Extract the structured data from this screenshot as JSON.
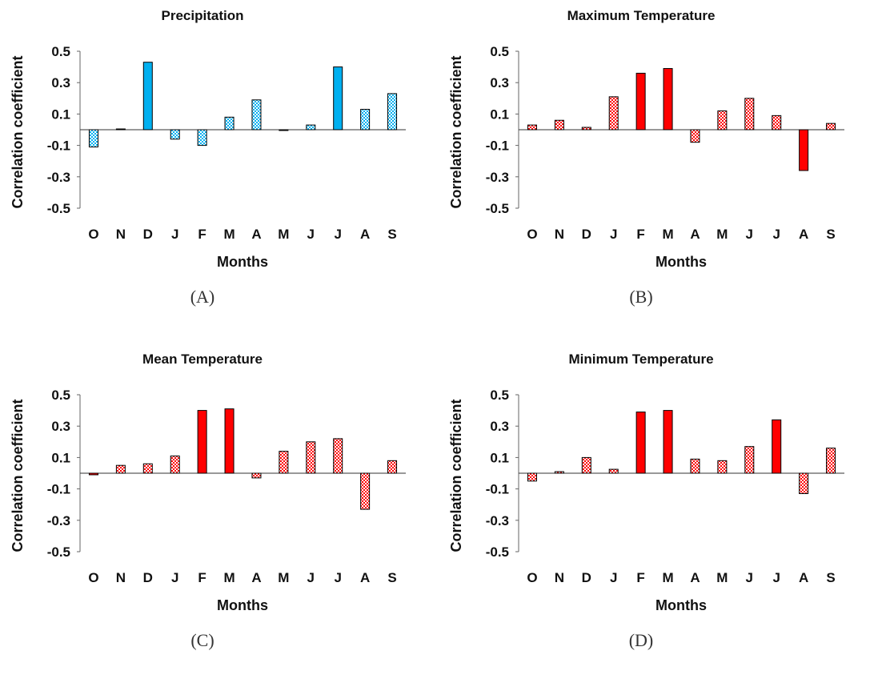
{
  "chart_data": [
    {
      "type": "bar",
      "title": "Precipitation",
      "panel_label": "(A)",
      "xlabel": "Months",
      "ylabel": "Correlation coefficient",
      "ylim": [
        -0.5,
        0.5
      ],
      "yticks": [
        "0.5",
        "0.3",
        "0.1",
        "-0.1",
        "-0.3",
        "-0.5"
      ],
      "categories": [
        "O",
        "N",
        "D",
        "J",
        "F",
        "M",
        "A",
        "M",
        "J",
        "J",
        "A",
        "S"
      ],
      "values": [
        -0.11,
        0.005,
        0.43,
        -0.06,
        -0.1,
        0.08,
        0.19,
        -0.005,
        0.03,
        0.4,
        0.13,
        0.23
      ],
      "significant": [
        false,
        false,
        true,
        false,
        false,
        false,
        false,
        false,
        false,
        true,
        false,
        false
      ],
      "colors": {
        "solid": "#00b0f0",
        "hatch": "#00b0f0"
      }
    },
    {
      "type": "bar",
      "title": "Maximum Temperature",
      "panel_label": "(B)",
      "xlabel": "Months",
      "ylabel": "Correlation coefficient",
      "ylim": [
        -0.5,
        0.5
      ],
      "yticks": [
        "0.5",
        "0.3",
        "0.1",
        "-0.1",
        "-0.3",
        "-0.5"
      ],
      "categories": [
        "O",
        "N",
        "D",
        "J",
        "F",
        "M",
        "A",
        "M",
        "J",
        "J",
        "A",
        "S"
      ],
      "values": [
        0.03,
        0.06,
        0.015,
        0.21,
        0.36,
        0.39,
        -0.08,
        0.12,
        0.2,
        0.09,
        -0.26,
        0.04
      ],
      "significant": [
        false,
        false,
        false,
        false,
        true,
        true,
        false,
        false,
        false,
        false,
        true,
        false
      ],
      "colors": {
        "solid": "#ff0000",
        "hatch": "#ff0000"
      }
    },
    {
      "type": "bar",
      "title": "Mean Temperature",
      "panel_label": "(C)",
      "xlabel": "Months",
      "ylabel": "Correlation coefficient",
      "ylim": [
        -0.5,
        0.5
      ],
      "yticks": [
        "0.5",
        "0.3",
        "0.1",
        "-0.1",
        "-0.3",
        "-0.5"
      ],
      "categories": [
        "O",
        "N",
        "D",
        "J",
        "F",
        "M",
        "A",
        "M",
        "J",
        "J",
        "A",
        "S"
      ],
      "values": [
        -0.01,
        0.05,
        0.06,
        0.11,
        0.4,
        0.41,
        -0.03,
        0.14,
        0.2,
        0.22,
        -0.23,
        0.08
      ],
      "significant": [
        true,
        false,
        false,
        false,
        true,
        true,
        false,
        false,
        false,
        false,
        false,
        false
      ],
      "colors": {
        "solid": "#ff0000",
        "hatch": "#ff0000"
      }
    },
    {
      "type": "bar",
      "title": "Minimum Temperature",
      "panel_label": "(D)",
      "xlabel": "Months",
      "ylabel": "Correlation coefficient",
      "ylim": [
        -0.5,
        0.5
      ],
      "yticks": [
        "0.5",
        "0.3",
        "0.1",
        "-0.1",
        "-0.3",
        "-0.5"
      ],
      "categories": [
        "O",
        "N",
        "D",
        "J",
        "F",
        "M",
        "A",
        "M",
        "J",
        "J",
        "A",
        "S"
      ],
      "values": [
        -0.05,
        0.01,
        0.1,
        0.025,
        0.39,
        0.4,
        0.09,
        0.08,
        0.17,
        0.34,
        -0.13,
        0.16
      ],
      "significant": [
        false,
        false,
        false,
        false,
        true,
        true,
        false,
        false,
        false,
        true,
        false,
        false
      ],
      "colors": {
        "solid": "#ff0000",
        "hatch": "#ff0000"
      }
    }
  ]
}
